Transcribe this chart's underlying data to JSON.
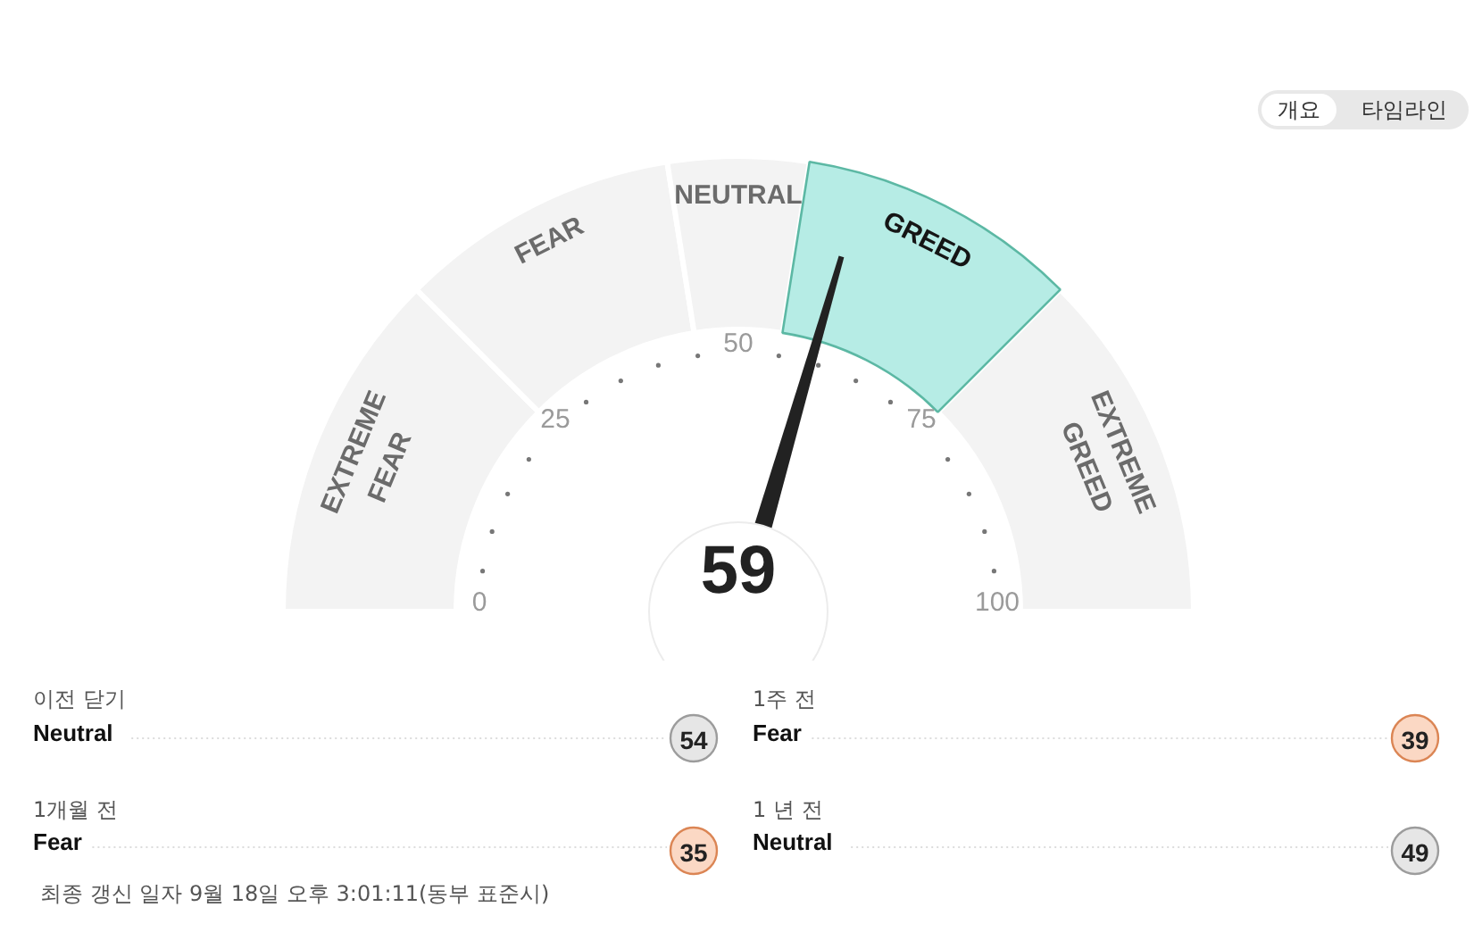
{
  "chart_data": [
    {
      "type": "other",
      "annotations": [
        "개요",
        "타임라인"
      ]
    },
    {
      "type": "donut",
      "categories": [
        "EXTREME FEAR",
        "FEAR",
        "NEUTRAL",
        "GREED",
        "EXTREME GREED"
      ],
      "values": [
        25,
        20,
        10,
        20,
        25
      ],
      "colors": [
        "#f3f3f3",
        "#f3f3f3",
        "#f3f3f3",
        "#b6ece5",
        "#f3f3f3"
      ],
      "needle": "GREED",
      "annotations": [
        "59",
        "0",
        "25",
        "50",
        "75",
        "100"
      ]
    },
    {
      "type": "other",
      "categories": [
        "이전 닫기",
        "1개월 전"
      ],
      "series": [
        {
          "color": "#e6e6e6",
          "values": [
            54,
            null
          ]
        },
        {
          "color": "#fbd8c4",
          "values": [
            null,
            35
          ]
        }
      ],
      "data_labels": true,
      "annotations": [
        {
          "text": "Neutral",
          "x": "이전 닫기"
        },
        {
          "text": "Fear",
          "x": "1개월 전"
        },
        "최종 갱신 일자 9월 18일 오후 3:01:11(동부 표준시)"
      ]
    },
    {
      "type": "other",
      "categories": [
        "1주 전",
        "1 년 전"
      ],
      "series": [
        {
          "color": "#fbd8c4",
          "values": [
            39,
            null
          ]
        },
        {
          "color": "#e6e6e6",
          "values": [
            null,
            49
          ]
        }
      ],
      "data_labels": true,
      "annotations": [
        {
          "text": "Fear",
          "x": "1주 전"
        },
        {
          "text": "Neutral",
          "x": "1 년 전"
        }
      ]
    }
  ]
}
